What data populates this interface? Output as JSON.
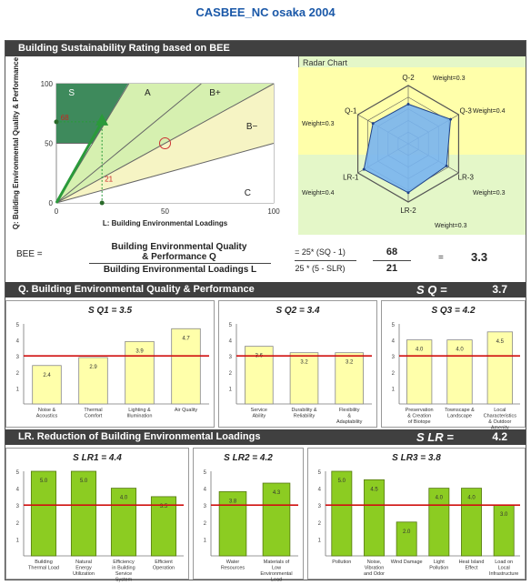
{
  "app_title": "CASBEE_NC osaka 2004",
  "rating_header": "Building Sustainability Rating based on BEE",
  "radar_title": "Radar Chart",
  "bee_formula": {
    "label": "BEE =",
    "numerator_line1": "Building Environmental Quality",
    "numerator_line2": "& Performance Q",
    "denominator": "Building Environmental Loadings L",
    "eq_num": "= 25* (SQ - 1)",
    "eq_den": "25 * (5 - SLR)",
    "q_value": "68",
    "l_value": "21",
    "result_eq": "=",
    "result": "3.3"
  },
  "q_section": {
    "title": "Q.  Building Environmental Quality & Performance",
    "score_label": "S Q =",
    "score": "3.7"
  },
  "lr_section": {
    "title": "LR.  Reduction of Building Environmental Loadings",
    "score_label": "S LR =",
    "score": "4.2"
  },
  "chart_data": [
    {
      "type": "scatter",
      "title": "",
      "xlabel": "L: Building Environmental Loadings",
      "ylabel": "Q: Building Environmental Quality & Performance",
      "xlim": [
        0,
        100
      ],
      "ylim": [
        0,
        100
      ],
      "xticks": [
        "0",
        "50",
        "100"
      ],
      "yticks": [
        "0",
        "50",
        "100"
      ],
      "regions": [
        "S",
        "A",
        "B+",
        "B-",
        "C"
      ],
      "points": [
        {
          "x": 21,
          "y": 68
        }
      ],
      "annotations": [
        "68",
        "21"
      ]
    },
    {
      "type": "radar",
      "axes": [
        "Q-1",
        "Q-2",
        "Q-3",
        "LR-3",
        "LR-2",
        "LR-1"
      ],
      "weights": [
        "Weight=0.3",
        "Weight=0.3",
        "Weight=0.4",
        "Weight=0.3",
        "Weight=0.3",
        "Weight=0.4"
      ],
      "values": [
        3.5,
        3.4,
        4.2,
        3.8,
        4.2,
        4.4
      ],
      "rmax": 5
    },
    {
      "type": "bar",
      "title": "S Q1 = 3.5",
      "ylim": [
        0,
        5
      ],
      "reference": 3,
      "yticks": [
        "1",
        "2",
        "3",
        "4",
        "5"
      ],
      "categories": [
        "Noise & Acoustics",
        "Thermal Comfort",
        "Lighting & Illumination",
        "Air Quality"
      ],
      "values": [
        2.4,
        2.9,
        3.9,
        4.7
      ],
      "labels": [
        "2.4",
        "2.9",
        "3.9",
        "4.7"
      ]
    },
    {
      "type": "bar",
      "title": "S Q2 = 3.4",
      "ylim": [
        0,
        5
      ],
      "reference": 3,
      "yticks": [
        "1",
        "2",
        "3",
        "4",
        "5"
      ],
      "categories": [
        "Service Ability",
        "Durability & Reliability",
        "Flexibility & Adaptability"
      ],
      "values": [
        3.6,
        3.2,
        3.2
      ],
      "labels": [
        "3.6",
        "3.2",
        "3.2"
      ]
    },
    {
      "type": "bar",
      "title": "S Q3 = 4.2",
      "ylim": [
        0,
        5
      ],
      "reference": 3,
      "yticks": [
        "1",
        "2",
        "3",
        "4",
        "5"
      ],
      "categories": [
        "Preservation & Creation of Biotope",
        "Townscape & Landscape",
        "Local Characteristics & Outdoor Amenity"
      ],
      "values": [
        4.0,
        4.0,
        4.5
      ],
      "labels": [
        "4.0",
        "4.0",
        "4.5"
      ]
    },
    {
      "type": "bar",
      "title": "S LR1 = 4.4",
      "ylim": [
        0,
        5
      ],
      "reference": 3,
      "yticks": [
        "1",
        "2",
        "3",
        "4",
        "5"
      ],
      "categories": [
        "Building Thermal Load",
        "Natural Energy Utilization",
        "Efficiency in Building Service System",
        "Efficient Operation"
      ],
      "values": [
        5.0,
        5.0,
        4.0,
        3.5
      ],
      "labels": [
        "5.0",
        "5.0",
        "4.0",
        "3.5"
      ]
    },
    {
      "type": "bar",
      "title": "S LR2 = 4.2",
      "ylim": [
        0,
        5
      ],
      "reference": 3,
      "yticks": [
        "1",
        "2",
        "3",
        "4",
        "5"
      ],
      "categories": [
        "Water Resources",
        "Materials of Low Environmental Load"
      ],
      "values": [
        3.8,
        4.3
      ],
      "labels": [
        "3.8",
        "4.3"
      ]
    },
    {
      "type": "bar",
      "title": "S LR3 = 3.8",
      "ylim": [
        0,
        5
      ],
      "reference": 3,
      "yticks": [
        "1",
        "2",
        "3",
        "4",
        "5"
      ],
      "categories": [
        "Pollution",
        "Noise, Vibration and Odor",
        "Wind Damage",
        "Light Pollution",
        "Heat Island Effect",
        "Load on Local Infrastructure"
      ],
      "values": [
        5.0,
        4.5,
        2.0,
        4.0,
        4.0,
        3.0
      ],
      "labels": [
        "5.0",
        "4.5",
        "2.0",
        "4.0",
        "4.0",
        "3.0"
      ]
    }
  ]
}
